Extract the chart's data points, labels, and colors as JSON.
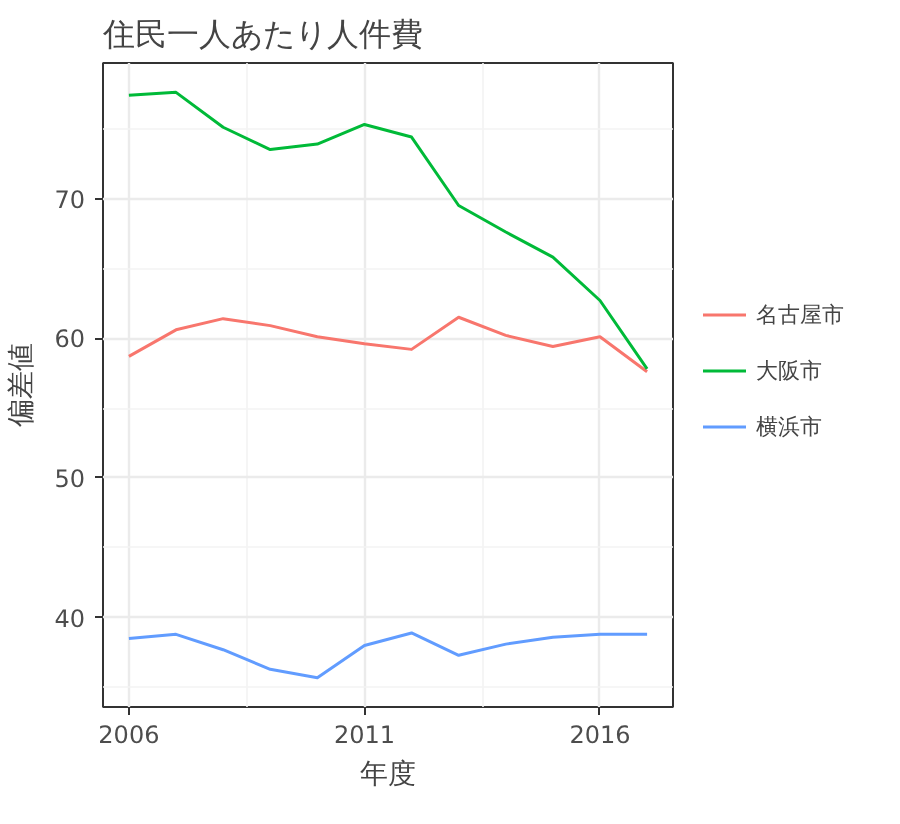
{
  "chart_data": {
    "type": "line",
    "title": "住民一人あたり人件費",
    "xlabel": "年度",
    "ylabel": "偏差値",
    "x": [
      2006,
      2007,
      2008,
      2009,
      2010,
      2011,
      2012,
      2013,
      2014,
      2015,
      2016,
      2017
    ],
    "series": [
      {
        "name": "名古屋市",
        "color": "#f8766d",
        "values": [
          58.7,
          60.6,
          61.4,
          60.9,
          60.1,
          59.6,
          59.2,
          61.5,
          60.2,
          59.4,
          60.1,
          57.6
        ]
      },
      {
        "name": "大阪市",
        "color": "#00ba38",
        "values": [
          77.4,
          77.6,
          75.1,
          73.5,
          73.9,
          75.3,
          74.4,
          69.5,
          67.6,
          65.8,
          62.7,
          57.8
        ]
      },
      {
        "name": "横浜市",
        "color": "#619cff",
        "values": [
          38.5,
          38.8,
          37.7,
          36.3,
          35.7,
          38.0,
          38.9,
          37.3,
          38.1,
          38.6,
          38.8,
          38.8
        ]
      }
    ],
    "xlim": [
      2005.45,
      2017.55
    ],
    "ylim": [
      33.6,
      79.7
    ],
    "xticks": [
      2006,
      2011,
      2016
    ],
    "yticks": [
      40,
      50,
      60,
      70
    ],
    "grid": true,
    "legend": "right",
    "line_style": "solid",
    "marker": "none"
  }
}
